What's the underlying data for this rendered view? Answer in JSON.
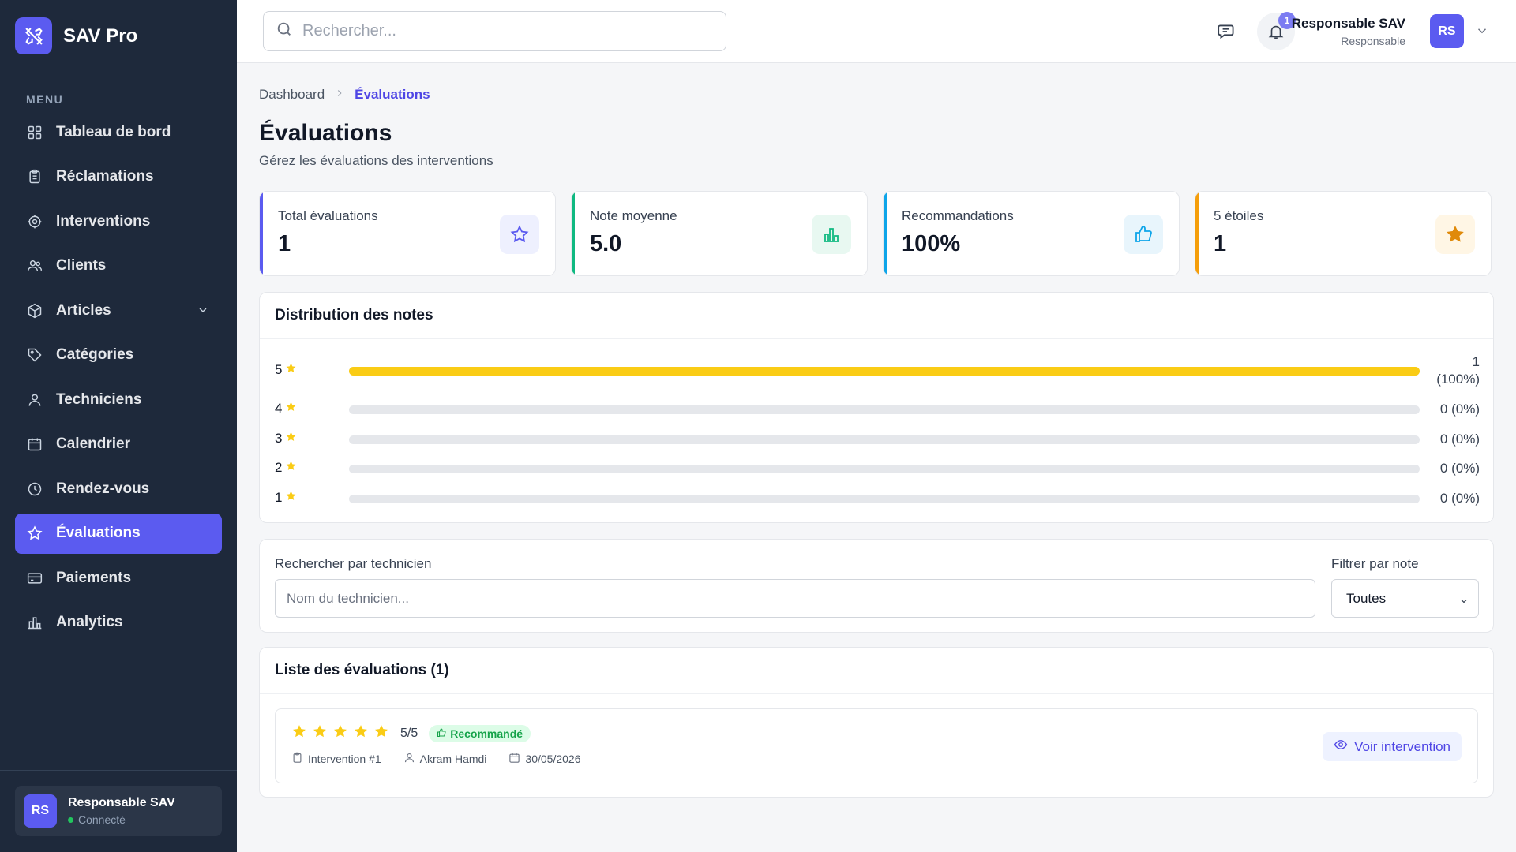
{
  "app": {
    "name": "SAV Pro"
  },
  "sidebar": {
    "menu_heading": "MENU",
    "items": [
      {
        "label": "Tableau de bord",
        "icon": "grid-icon"
      },
      {
        "label": "Réclamations",
        "icon": "clipboard-icon"
      },
      {
        "label": "Interventions",
        "icon": "gear-icon"
      },
      {
        "label": "Clients",
        "icon": "users-icon"
      },
      {
        "label": "Articles",
        "icon": "box-icon"
      },
      {
        "label": "Catégories",
        "icon": "tag-icon"
      },
      {
        "label": "Techniciens",
        "icon": "user-icon"
      },
      {
        "label": "Calendrier",
        "icon": "calendar-icon"
      },
      {
        "label": "Rendez-vous",
        "icon": "clock-icon"
      },
      {
        "label": "Évaluations",
        "icon": "star-icon",
        "active": true
      },
      {
        "label": "Paiements",
        "icon": "card-icon"
      },
      {
        "label": "Analytics",
        "icon": "bar-chart-icon"
      }
    ],
    "user": {
      "initials": "RS",
      "name": "Responsable SAV",
      "status": "Connecté"
    }
  },
  "topbar": {
    "search_placeholder": "Rechercher...",
    "notification_count": "1",
    "user_name": "Responsable SAV",
    "user_role": "Responsable",
    "user_initials": "RS"
  },
  "breadcrumb": {
    "home": "Dashboard",
    "current": "Évaluations"
  },
  "page": {
    "title": "Évaluations",
    "subtitle": "Gérez les évaluations des interventions"
  },
  "stats": [
    {
      "label": "Total évaluations",
      "value": "1",
      "color": "#5b5bf0",
      "icon": "star-outline-icon"
    },
    {
      "label": "Note moyenne",
      "value": "5.0",
      "color": "#10b981",
      "icon": "bar-chart-icon"
    },
    {
      "label": "Recommandations",
      "value": "100%",
      "color": "#0ea5e9",
      "icon": "thumbs-up-icon"
    },
    {
      "label": "5 étoiles",
      "value": "1",
      "color": "#f59e0b",
      "icon": "star-filled-icon"
    }
  ],
  "distribution": {
    "title": "Distribution des notes",
    "rows": [
      {
        "rating": "5",
        "fraction": 1.0,
        "count": "1",
        "percent": "(100%)"
      },
      {
        "rating": "4",
        "fraction": 0,
        "count": "0 (0%)",
        "percent": ""
      },
      {
        "rating": "3",
        "fraction": 0,
        "count": "0 (0%)",
        "percent": ""
      },
      {
        "rating": "2",
        "fraction": 0,
        "count": "0 (0%)",
        "percent": ""
      },
      {
        "rating": "1",
        "fraction": 0,
        "count": "0 (0%)",
        "percent": ""
      }
    ]
  },
  "filters": {
    "search_label": "Rechercher par technicien",
    "search_placeholder": "Nom du technicien...",
    "rating_label": "Filtrer par note",
    "rating_value": "Toutes"
  },
  "list": {
    "title": "Liste des évaluations (1)",
    "items": [
      {
        "stars": 5,
        "score": "5/5",
        "badge": "Recommandé",
        "intervention": "Intervention #1",
        "technician": "Akram Hamdi",
        "date": "30/05/2026",
        "action": "Voir intervention"
      }
    ]
  }
}
